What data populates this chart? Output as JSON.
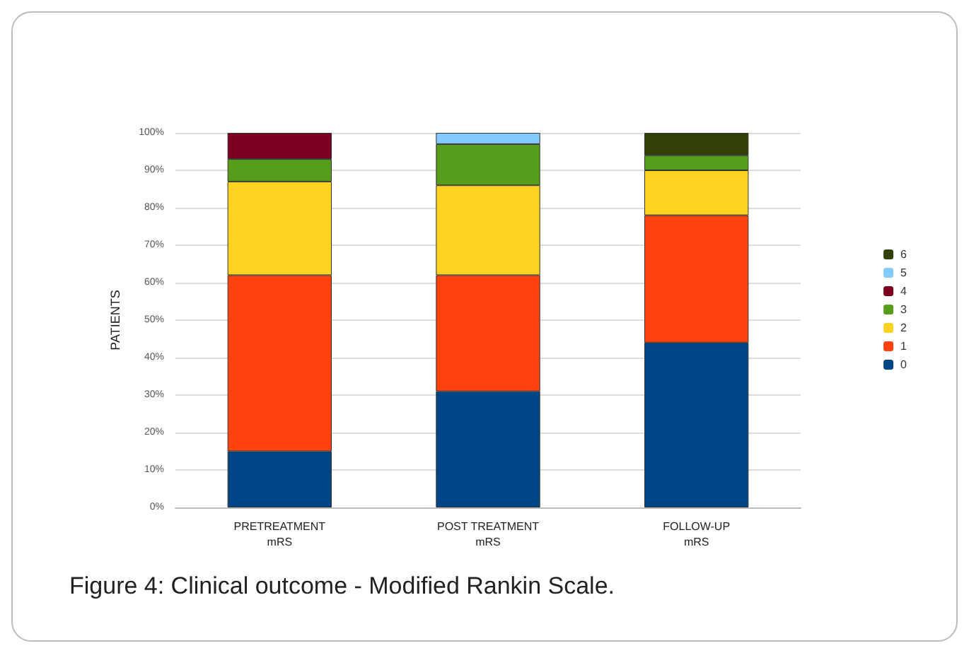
{
  "chart_data": {
    "type": "bar",
    "stacked": true,
    "ylabel": "PATIENTS",
    "categories": [
      "PRETREATMENT\nmRS",
      "POST TREATMENT\nmRS",
      "FOLLOW-UP\nmRS"
    ],
    "series": [
      {
        "name": "0",
        "color": "#004586",
        "values": [
          15,
          31,
          44
        ]
      },
      {
        "name": "1",
        "color": "#ff420e",
        "values": [
          47,
          31,
          34
        ]
      },
      {
        "name": "2",
        "color": "#ffd320",
        "values": [
          25,
          24,
          12
        ]
      },
      {
        "name": "3",
        "color": "#579d1c",
        "values": [
          6,
          11,
          4
        ]
      },
      {
        "name": "4",
        "color": "#7e0021",
        "values": [
          7,
          null,
          null
        ]
      },
      {
        "name": "5",
        "color": "#83caff",
        "values": [
          null,
          3,
          null
        ]
      },
      {
        "name": "6",
        "color": "#314004",
        "values": [
          null,
          null,
          6
        ]
      }
    ],
    "ylim": [
      0,
      100
    ],
    "yticks": [
      {
        "value": 0,
        "label": "0%"
      },
      {
        "value": 10,
        "label": "10%"
      },
      {
        "value": 20,
        "label": "20%"
      },
      {
        "value": 30,
        "label": "30%"
      },
      {
        "value": 40,
        "label": "40%"
      },
      {
        "value": 50,
        "label": "50%"
      },
      {
        "value": 60,
        "label": "60%"
      },
      {
        "value": 70,
        "label": "70%"
      },
      {
        "value": 80,
        "label": "80%"
      },
      {
        "value": 90,
        "label": "90%"
      },
      {
        "value": 100,
        "label": "100%"
      }
    ],
    "grid": "y",
    "legend": "right",
    "annotations": [
      "Figure 4:  Clinical outcome - Modified Rankin Scale."
    ]
  }
}
